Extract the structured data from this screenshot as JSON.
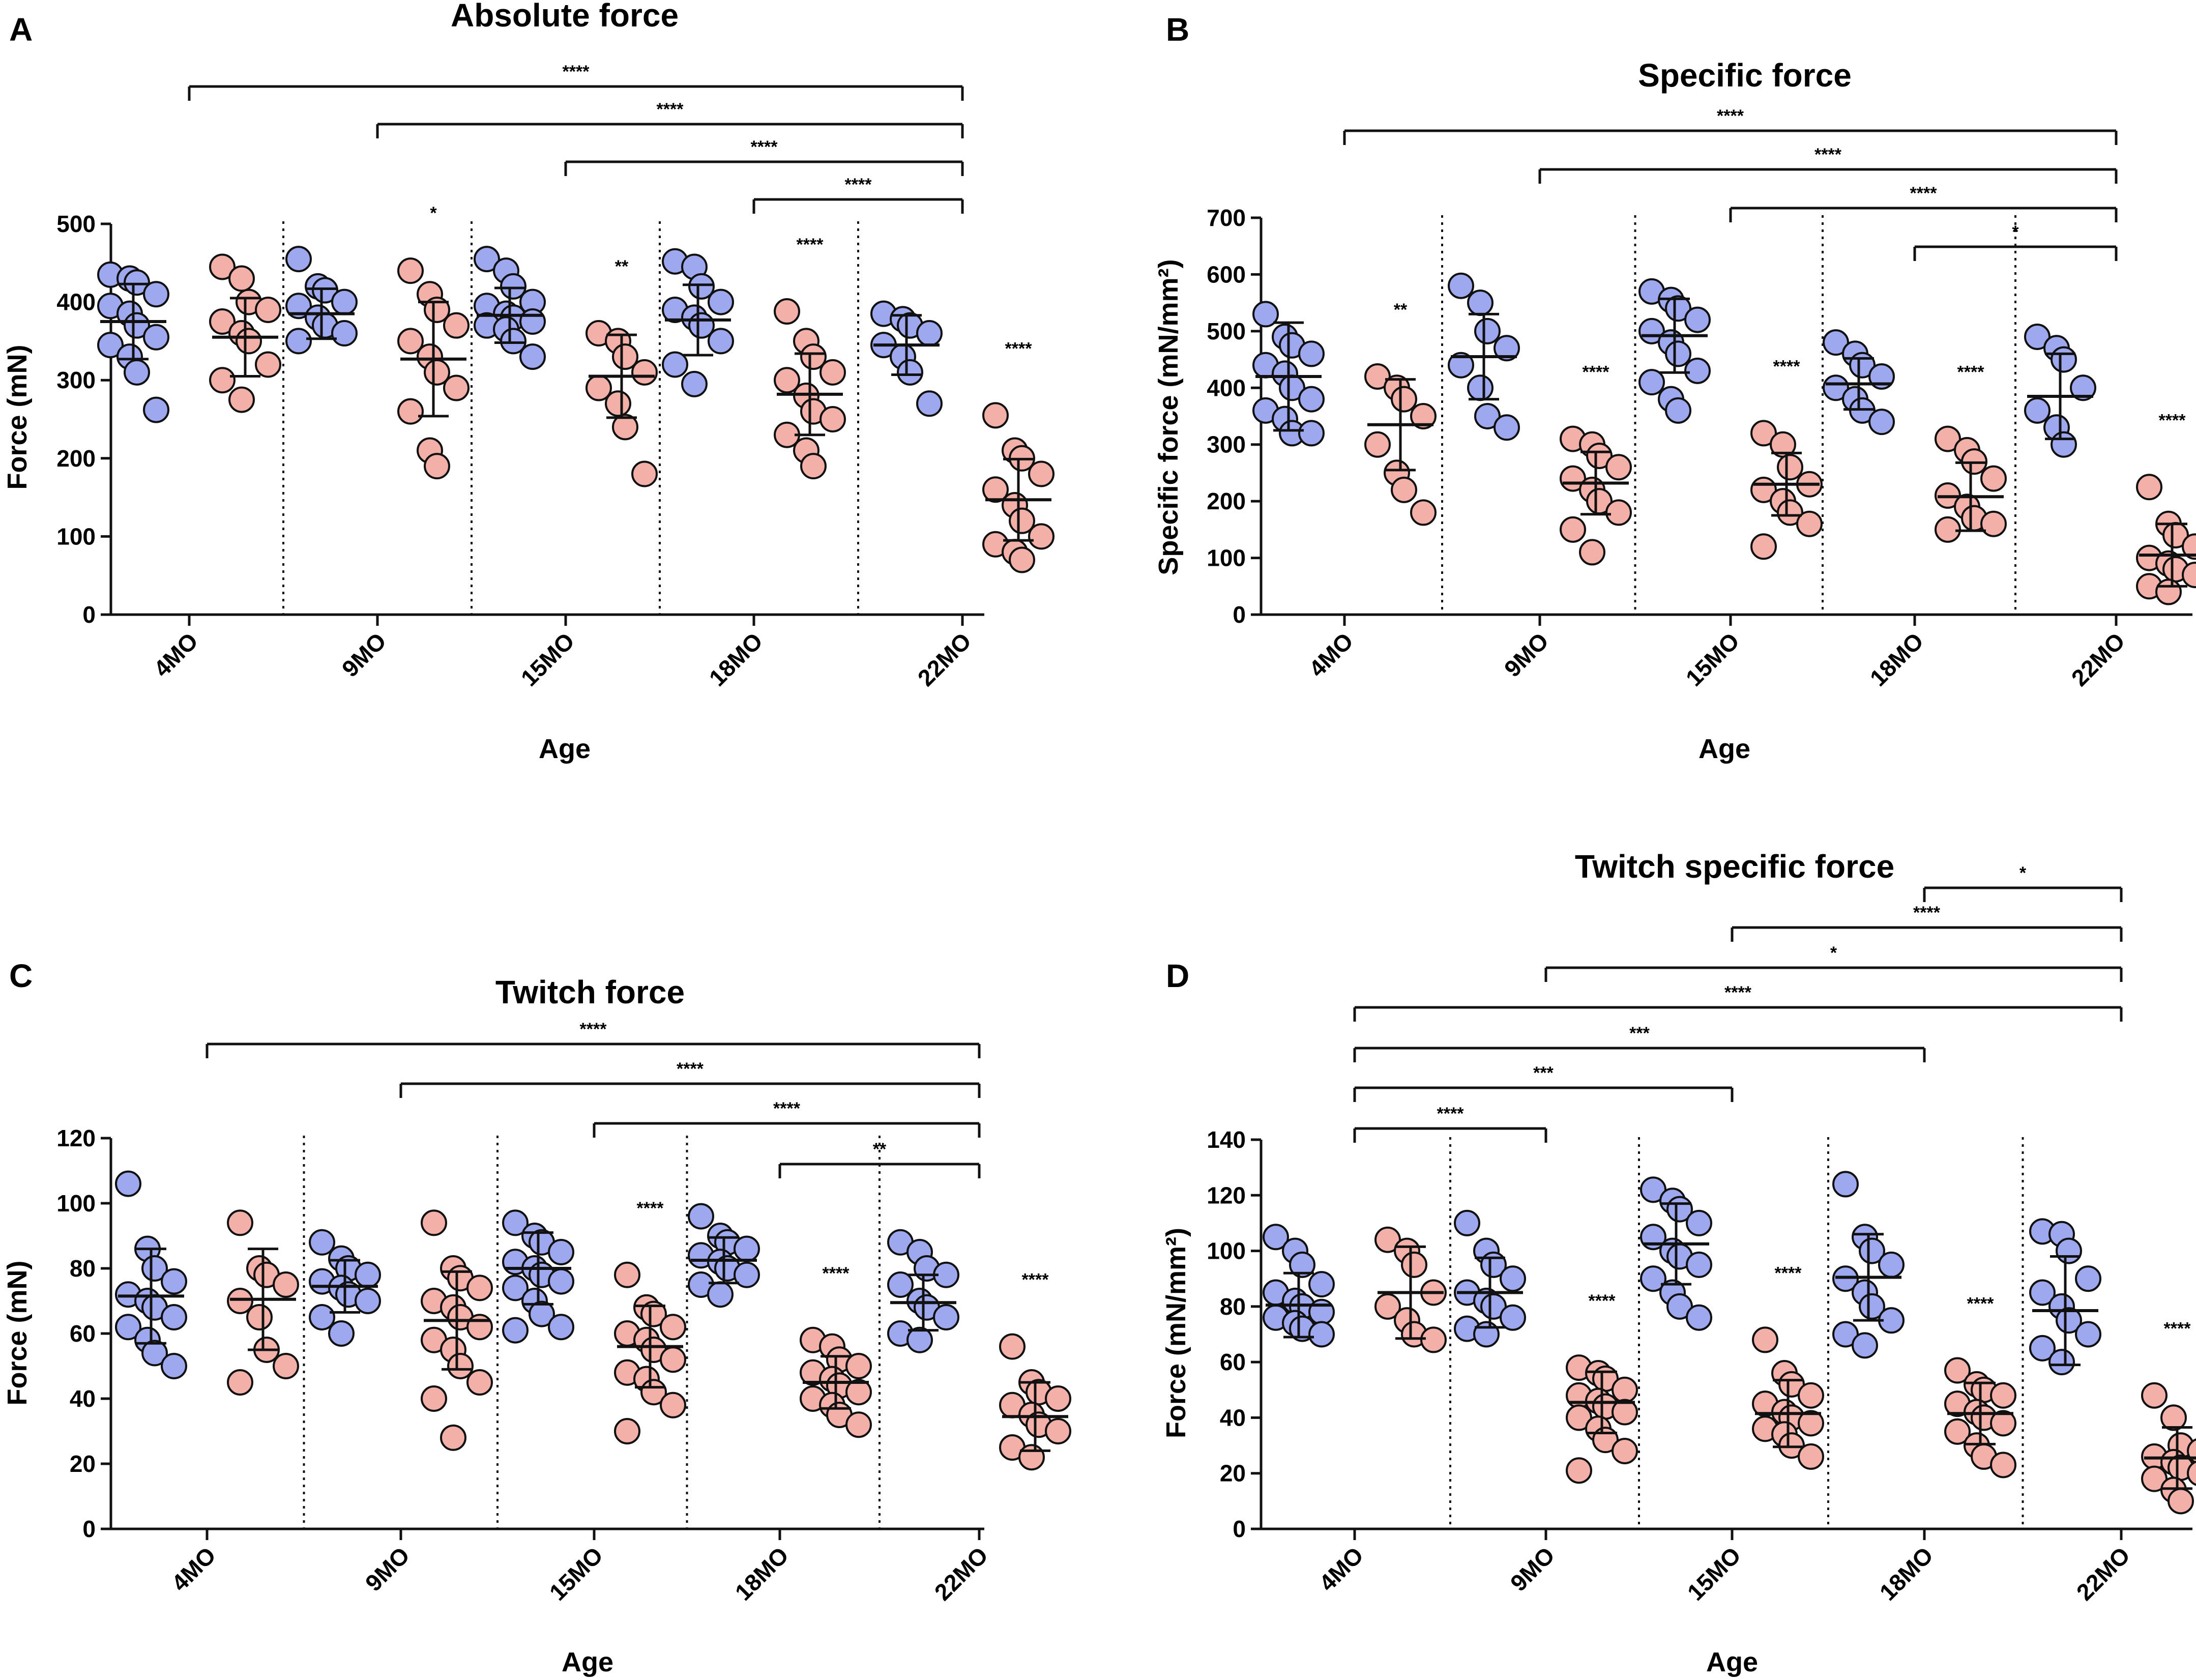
{
  "colors": {
    "group1": "#9ea8ee",
    "group2": "#f2b0a8",
    "stroke": "#111111"
  },
  "chart_data": [
    {
      "type": "scatter",
      "panel": "A",
      "title": "Absolute force",
      "xlabel": "Age",
      "ylabel": "Force (mN)",
      "ylim": [
        0,
        500
      ],
      "yticks": [
        0,
        100,
        200,
        300,
        400,
        500
      ],
      "categories": [
        "4MO",
        "9MO",
        "15MO",
        "18MO",
        "22MO"
      ],
      "series": [
        {
          "name": "group1",
          "color": "#9ea8ee",
          "means": [
            375,
            385,
            383,
            377,
            345
          ],
          "sd": [
            48,
            32,
            35,
            45,
            38
          ],
          "points": [
            [
              435,
              430,
              425,
              410,
              395,
              385,
              370,
              355,
              345,
              330,
              310,
              262
            ],
            [
              455,
              420,
              415,
              400,
              395,
              380,
              370,
              360,
              350
            ],
            [
              455,
              440,
              420,
              400,
              395,
              385,
              380,
              375,
              370,
              365,
              350,
              330
            ],
            [
              452,
              445,
              420,
              400,
              390,
              380,
              370,
              350,
              320,
              295
            ],
            [
              385,
              378,
              370,
              360,
              345,
              330,
              310,
              270
            ]
          ]
        },
        {
          "name": "group2",
          "color": "#f2b0a8",
          "means": [
            355,
            327,
            305,
            282,
            147
          ],
          "sd": [
            50,
            73,
            53,
            52,
            52
          ],
          "points": [
            [
              445,
              430,
              400,
              390,
              375,
              360,
              350,
              320,
              300,
              275
            ],
            [
              440,
              410,
              390,
              370,
              350,
              330,
              310,
              290,
              260,
              210,
              190
            ],
            [
              360,
              350,
              330,
              310,
              290,
              270,
              240,
              180
            ],
            [
              388,
              350,
              330,
              310,
              300,
              280,
              260,
              250,
              230,
              210,
              190
            ],
            [
              255,
              210,
              200,
              180,
              160,
              140,
              120,
              100,
              90,
              80,
              70
            ]
          ]
        }
      ],
      "comparisons": [
        {
          "from": "4MO",
          "to": "22MO",
          "label": "****"
        },
        {
          "from": "9MO",
          "to": "22MO",
          "label": "****"
        },
        {
          "from": "15MO",
          "to": "22MO",
          "label": "****"
        },
        {
          "from": "18MO",
          "to": "22MO",
          "label": "****"
        }
      ],
      "within_group": [
        "",
        "*",
        "**",
        "****",
        "****"
      ]
    },
    {
      "type": "scatter",
      "panel": "B",
      "title": "Specific force",
      "xlabel": "Age",
      "ylabel": "Specific force (mN/mm²)",
      "ylim": [
        0,
        700
      ],
      "yticks": [
        0,
        100,
        200,
        300,
        400,
        500,
        600,
        700
      ],
      "categories": [
        "4MO",
        "9MO",
        "15MO",
        "18MO",
        "22MO"
      ],
      "series": [
        {
          "name": "group1",
          "color": "#9ea8ee",
          "means": [
            420,
            455,
            492,
            407,
            385
          ],
          "sd": [
            95,
            75,
            65,
            45,
            75
          ],
          "points": [
            [
              530,
              490,
              475,
              460,
              440,
              425,
              400,
              380,
              360,
              345,
              320,
              320
            ],
            [
              580,
              550,
              500,
              470,
              440,
              400,
              350,
              330
            ],
            [
              570,
              555,
              540,
              520,
              500,
              480,
              460,
              430,
              410,
              380,
              360
            ],
            [
              480,
              460,
              440,
              420,
              400,
              380,
              360,
              340
            ],
            [
              490,
              470,
              450,
              400,
              360,
              330,
              300
            ]
          ]
        },
        {
          "name": "group2",
          "color": "#f2b0a8",
          "means": [
            335,
            232,
            230,
            208,
            105
          ],
          "sd": [
            80,
            55,
            55,
            60,
            55
          ],
          "points": [
            [
              420,
              400,
              380,
              350,
              300,
              250,
              220,
              180
            ],
            [
              310,
              300,
              280,
              260,
              240,
              220,
              200,
              180,
              150,
              110
            ],
            [
              320,
              300,
              260,
              230,
              220,
              200,
              180,
              160,
              120
            ],
            [
              310,
              290,
              270,
              240,
              210,
              190,
              170,
              160,
              150
            ],
            [
              225,
              160,
              140,
              120,
              100,
              90,
              80,
              70,
              50,
              40
            ]
          ]
        }
      ],
      "comparisons": [
        {
          "from": "4MO",
          "to": "22MO",
          "label": "****"
        },
        {
          "from": "9MO",
          "to": "22MO",
          "label": "****"
        },
        {
          "from": "15MO",
          "to": "22MO",
          "label": "****"
        },
        {
          "from": "18MO",
          "to": "22MO",
          "label": "*"
        }
      ],
      "within_group": [
        "**",
        "****",
        "****",
        "****",
        "****"
      ]
    },
    {
      "type": "scatter",
      "panel": "C",
      "title": "Twitch force",
      "xlabel": "Age",
      "ylabel": "Force (mN)",
      "ylim": [
        0,
        120
      ],
      "yticks": [
        0,
        20,
        40,
        60,
        80,
        100,
        120
      ],
      "categories": [
        "4MO",
        "9MO",
        "15MO",
        "18MO",
        "22MO"
      ],
      "series": [
        {
          "name": "group1",
          "color": "#9ea8ee",
          "means": [
            71.5,
            74.5,
            80,
            82.5,
            69.5
          ],
          "sd": [
            14.5,
            8,
            11,
            7,
            8.5
          ],
          "points": [
            [
              106,
              86,
              80,
              76,
              72,
              70,
              68,
              65,
              62,
              58,
              54,
              50
            ],
            [
              88,
              83,
              80,
              78,
              76,
              74,
              72,
              70,
              65,
              60
            ],
            [
              94,
              90,
              88,
              85,
              82,
              80,
              78,
              76,
              74,
              70,
              66,
              62,
              61
            ],
            [
              96,
              90,
              88,
              86,
              84,
              82,
              80,
              78,
              75,
              72
            ],
            [
              88,
              85,
              80,
              78,
              75,
              70,
              68,
              65,
              60,
              58
            ]
          ]
        },
        {
          "name": "group2",
          "color": "#f2b0a8",
          "means": [
            70.5,
            64,
            56,
            45,
            34.5
          ],
          "sd": [
            15.5,
            15,
            12.5,
            8,
            10.5
          ],
          "points": [
            [
              94,
              80,
              78,
              75,
              70,
              65,
              55,
              50,
              45
            ],
            [
              94,
              80,
              77,
              74,
              70,
              68,
              65,
              62,
              58,
              55,
              50,
              45,
              40,
              28
            ],
            [
              78,
              68,
              66,
              62,
              60,
              58,
              55,
              52,
              48,
              46,
              42,
              38,
              30
            ],
            [
              58,
              56,
              52,
              50,
              48,
              46,
              44,
              42,
              40,
              38,
              35,
              32
            ],
            [
              56,
              45,
              42,
              40,
              38,
              35,
              32,
              30,
              25,
              22
            ]
          ]
        }
      ],
      "comparisons": [
        {
          "from": "4MO",
          "to": "22MO",
          "label": "****"
        },
        {
          "from": "9MO",
          "to": "22MO",
          "label": "****"
        },
        {
          "from": "15MO",
          "to": "22MO",
          "label": "****"
        },
        {
          "from": "18MO",
          "to": "22MO",
          "label": "**"
        }
      ],
      "within_group": [
        "",
        "",
        "****",
        "****",
        "****"
      ]
    },
    {
      "type": "scatter",
      "panel": "D",
      "title": "Twitch specific force",
      "xlabel": "Age",
      "ylabel": "Force (mN/mm²)",
      "ylim": [
        0,
        140
      ],
      "yticks": [
        0,
        20,
        40,
        60,
        80,
        100,
        120,
        140
      ],
      "categories": [
        "4MO",
        "9MO",
        "15MO",
        "18MO",
        "22MO"
      ],
      "series": [
        {
          "name": "group1",
          "color": "#9ea8ee",
          "means": [
            80.5,
            85,
            102.5,
            90.5,
            78.5
          ],
          "sd": [
            11.5,
            12.5,
            14.5,
            15.5,
            19.5
          ],
          "points": [
            [
              105,
              100,
              95,
              88,
              85,
              82,
              80,
              78,
              76,
              74,
              72,
              70
            ],
            [
              110,
              100,
              95,
              90,
              85,
              82,
              80,
              76,
              72,
              70
            ],
            [
              122,
              118,
              115,
              110,
              105,
              100,
              98,
              95,
              90,
              85,
              80,
              76
            ],
            [
              124,
              105,
              100,
              95,
              90,
              85,
              80,
              75,
              70,
              66
            ],
            [
              107,
              106,
              100,
              90,
              85,
              80,
              75,
              70,
              65,
              60
            ]
          ]
        },
        {
          "name": "group2",
          "color": "#f2b0a8",
          "means": [
            85,
            45.5,
            41.5,
            41.5,
            25.5
          ],
          "sd": [
            16.5,
            11,
            12,
            11,
            11
          ],
          "points": [
            [
              104,
              100,
              95,
              85,
              80,
              75,
              70,
              68
            ],
            [
              58,
              56,
              54,
              50,
              48,
              46,
              44,
              42,
              40,
              36,
              32,
              28,
              21
            ],
            [
              68,
              56,
              52,
              48,
              45,
              42,
              40,
              38,
              36,
              34,
              30,
              26
            ],
            [
              57,
              52,
              50,
              48,
              45,
              42,
              40,
              38,
              35,
              30,
              26,
              23
            ],
            [
              48,
              40,
              30,
              28,
              26,
              24,
              22,
              20,
              18,
              14,
              10
            ]
          ]
        }
      ],
      "comparisons": [
        {
          "from": "18MO",
          "to": "22MO",
          "label": "*"
        },
        {
          "from": "15MO",
          "to": "22MO",
          "label": "****"
        },
        {
          "from": "9MO",
          "to": "22MO",
          "label": "*"
        },
        {
          "from": "4MO",
          "to": "22MO",
          "label": "****"
        },
        {
          "from": "4MO",
          "to": "18MO",
          "label": "***"
        },
        {
          "from": "4MO",
          "to": "15MO",
          "label": "***"
        },
        {
          "from": "4MO",
          "to": "9MO",
          "label": "****"
        }
      ],
      "within_group": [
        "",
        "****",
        "****",
        "****",
        "****"
      ]
    }
  ]
}
